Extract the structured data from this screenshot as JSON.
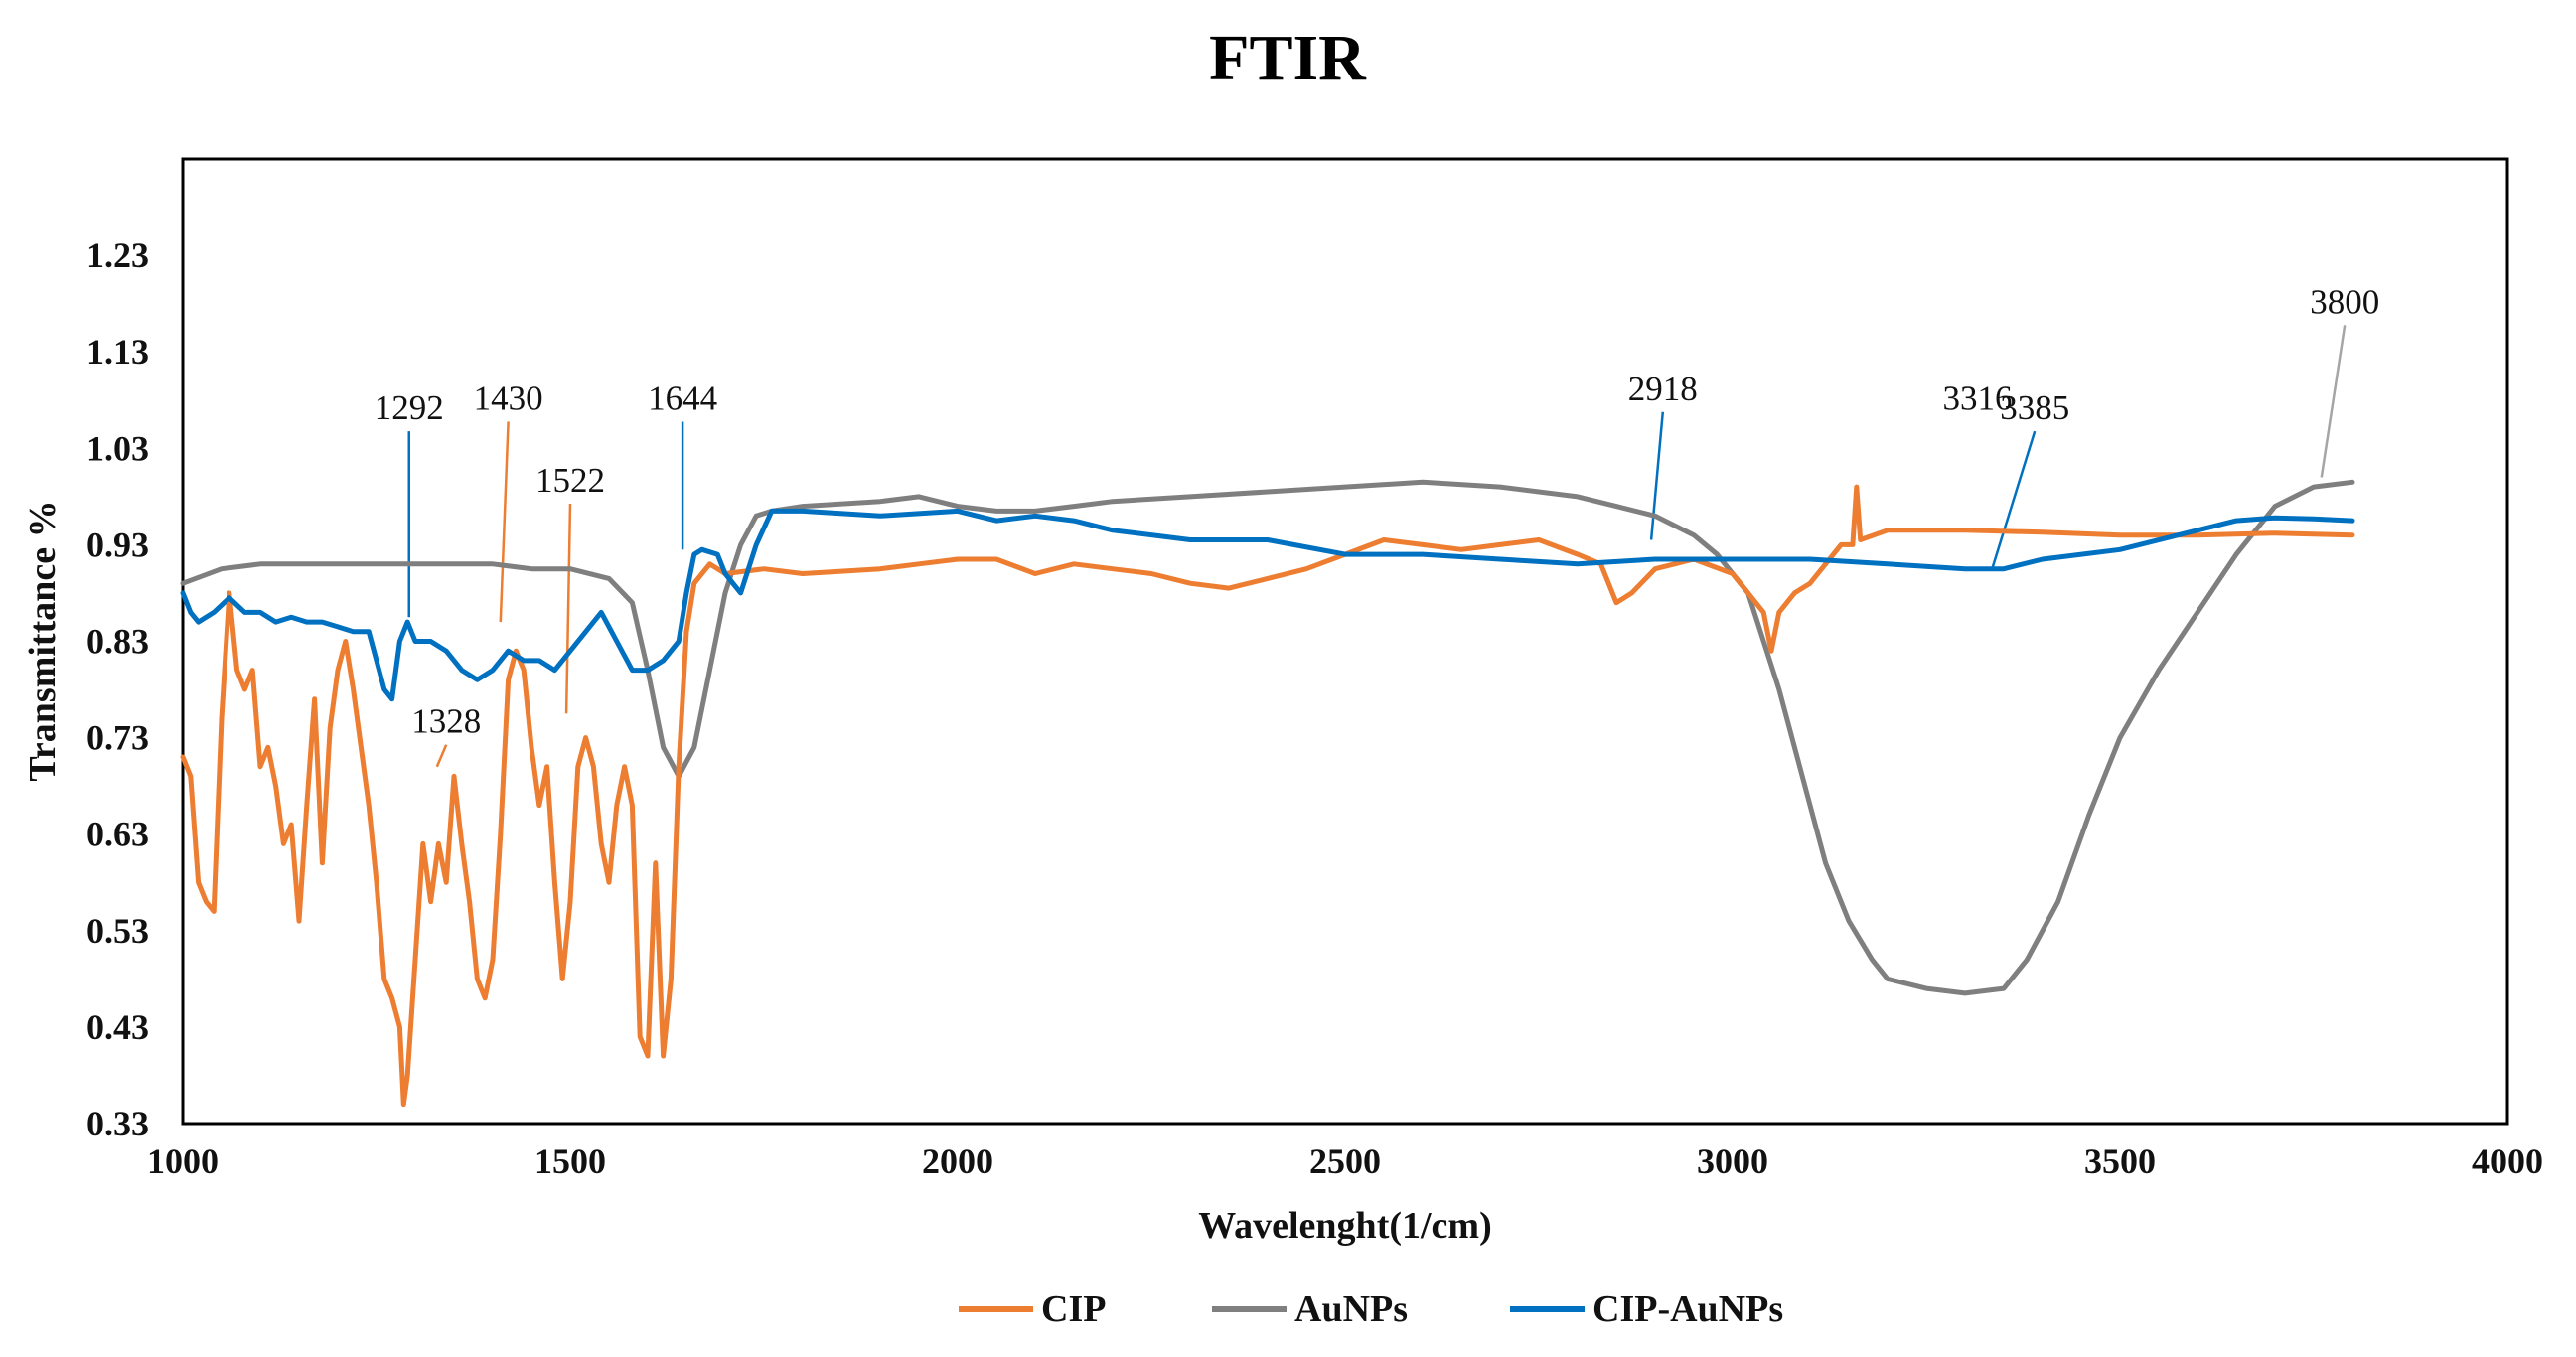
{
  "chart_data": {
    "type": "line",
    "title": "FTIR",
    "xlabel": "Wavelenght(1/cm)",
    "ylabel": "Transmittance %",
    "xlim": [
      1000,
      4000
    ],
    "ylim": [
      0.33,
      1.33
    ],
    "x_ticks": [
      "1000",
      "1500",
      "2000",
      "2500",
      "3000",
      "3500",
      "4000"
    ],
    "y_ticks": [
      "0.33",
      "0.43",
      "0.53",
      "0.63",
      "0.73",
      "0.83",
      "0.93",
      "1.03",
      "1.13",
      "1.23"
    ],
    "grid": false,
    "legend_position": "bottom",
    "series": [
      {
        "name": "CIP",
        "color": "#ED7D31",
        "points": [
          [
            1000,
            0.71
          ],
          [
            1010,
            0.69
          ],
          [
            1020,
            0.58
          ],
          [
            1030,
            0.56
          ],
          [
            1040,
            0.55
          ],
          [
            1050,
            0.75
          ],
          [
            1060,
            0.88
          ],
          [
            1070,
            0.8
          ],
          [
            1080,
            0.78
          ],
          [
            1090,
            0.8
          ],
          [
            1100,
            0.7
          ],
          [
            1110,
            0.72
          ],
          [
            1120,
            0.68
          ],
          [
            1130,
            0.62
          ],
          [
            1140,
            0.64
          ],
          [
            1150,
            0.54
          ],
          [
            1160,
            0.66
          ],
          [
            1170,
            0.77
          ],
          [
            1180,
            0.6
          ],
          [
            1190,
            0.74
          ],
          [
            1200,
            0.8
          ],
          [
            1210,
            0.83
          ],
          [
            1220,
            0.78
          ],
          [
            1230,
            0.72
          ],
          [
            1240,
            0.66
          ],
          [
            1250,
            0.58
          ],
          [
            1260,
            0.48
          ],
          [
            1270,
            0.46
          ],
          [
            1280,
            0.43
          ],
          [
            1285,
            0.35
          ],
          [
            1290,
            0.38
          ],
          [
            1300,
            0.5
          ],
          [
            1310,
            0.62
          ],
          [
            1320,
            0.56
          ],
          [
            1330,
            0.62
          ],
          [
            1340,
            0.58
          ],
          [
            1350,
            0.69
          ],
          [
            1360,
            0.62
          ],
          [
            1370,
            0.56
          ],
          [
            1380,
            0.48
          ],
          [
            1390,
            0.46
          ],
          [
            1400,
            0.5
          ],
          [
            1410,
            0.63
          ],
          [
            1420,
            0.79
          ],
          [
            1430,
            0.82
          ],
          [
            1440,
            0.8
          ],
          [
            1450,
            0.72
          ],
          [
            1460,
            0.66
          ],
          [
            1470,
            0.7
          ],
          [
            1480,
            0.58
          ],
          [
            1490,
            0.48
          ],
          [
            1500,
            0.56
          ],
          [
            1510,
            0.7
          ],
          [
            1520,
            0.73
          ],
          [
            1530,
            0.7
          ],
          [
            1540,
            0.62
          ],
          [
            1550,
            0.58
          ],
          [
            1560,
            0.66
          ],
          [
            1570,
            0.7
          ],
          [
            1580,
            0.66
          ],
          [
            1590,
            0.42
          ],
          [
            1600,
            0.4
          ],
          [
            1610,
            0.6
          ],
          [
            1620,
            0.4
          ],
          [
            1630,
            0.48
          ],
          [
            1640,
            0.7
          ],
          [
            1650,
            0.84
          ],
          [
            1660,
            0.89
          ],
          [
            1680,
            0.91
          ],
          [
            1700,
            0.9
          ],
          [
            1750,
            0.905
          ],
          [
            1800,
            0.9
          ],
          [
            1900,
            0.905
          ],
          [
            1950,
            0.91
          ],
          [
            2000,
            0.915
          ],
          [
            2050,
            0.915
          ],
          [
            2100,
            0.9
          ],
          [
            2150,
            0.91
          ],
          [
            2200,
            0.905
          ],
          [
            2250,
            0.9
          ],
          [
            2300,
            0.89
          ],
          [
            2350,
            0.885
          ],
          [
            2400,
            0.895
          ],
          [
            2450,
            0.905
          ],
          [
            2500,
            0.92
          ],
          [
            2550,
            0.935
          ],
          [
            2600,
            0.93
          ],
          [
            2650,
            0.925
          ],
          [
            2700,
            0.93
          ],
          [
            2750,
            0.935
          ],
          [
            2800,
            0.92
          ],
          [
            2830,
            0.91
          ],
          [
            2850,
            0.87
          ],
          [
            2870,
            0.88
          ],
          [
            2900,
            0.905
          ],
          [
            2950,
            0.915
          ],
          [
            3000,
            0.9
          ],
          [
            3020,
            0.88
          ],
          [
            3040,
            0.86
          ],
          [
            3050,
            0.82
          ],
          [
            3060,
            0.86
          ],
          [
            3080,
            0.88
          ],
          [
            3100,
            0.89
          ],
          [
            3120,
            0.91
          ],
          [
            3140,
            0.93
          ],
          [
            3155,
            0.93
          ],
          [
            3160,
            0.99
          ],
          [
            3165,
            0.935
          ],
          [
            3200,
            0.945
          ],
          [
            3250,
            0.945
          ],
          [
            3300,
            0.945
          ],
          [
            3400,
            0.943
          ],
          [
            3500,
            0.94
          ],
          [
            3600,
            0.94
          ],
          [
            3700,
            0.942
          ],
          [
            3800,
            0.94
          ]
        ]
      },
      {
        "name": "AuNPs",
        "color": "#7F7F7F",
        "points": [
          [
            1000,
            0.89
          ],
          [
            1050,
            0.905
          ],
          [
            1100,
            0.91
          ],
          [
            1200,
            0.91
          ],
          [
            1300,
            0.91
          ],
          [
            1400,
            0.91
          ],
          [
            1450,
            0.905
          ],
          [
            1500,
            0.905
          ],
          [
            1550,
            0.895
          ],
          [
            1580,
            0.87
          ],
          [
            1600,
            0.8
          ],
          [
            1620,
            0.72
          ],
          [
            1640,
            0.69
          ],
          [
            1660,
            0.72
          ],
          [
            1680,
            0.8
          ],
          [
            1700,
            0.88
          ],
          [
            1720,
            0.93
          ],
          [
            1740,
            0.96
          ],
          [
            1760,
            0.965
          ],
          [
            1800,
            0.97
          ],
          [
            1900,
            0.975
          ],
          [
            1950,
            0.98
          ],
          [
            2000,
            0.97
          ],
          [
            2050,
            0.965
          ],
          [
            2100,
            0.965
          ],
          [
            2150,
            0.97
          ],
          [
            2200,
            0.975
          ],
          [
            2300,
            0.98
          ],
          [
            2400,
            0.985
          ],
          [
            2500,
            0.99
          ],
          [
            2600,
            0.995
          ],
          [
            2700,
            0.99
          ],
          [
            2800,
            0.98
          ],
          [
            2850,
            0.97
          ],
          [
            2900,
            0.96
          ],
          [
            2950,
            0.94
          ],
          [
            2980,
            0.92
          ],
          [
            3000,
            0.9
          ],
          [
            3020,
            0.88
          ],
          [
            3040,
            0.83
          ],
          [
            3060,
            0.78
          ],
          [
            3080,
            0.72
          ],
          [
            3100,
            0.66
          ],
          [
            3120,
            0.6
          ],
          [
            3150,
            0.54
          ],
          [
            3180,
            0.5
          ],
          [
            3200,
            0.48
          ],
          [
            3250,
            0.47
          ],
          [
            3300,
            0.465
          ],
          [
            3350,
            0.47
          ],
          [
            3380,
            0.5
          ],
          [
            3420,
            0.56
          ],
          [
            3460,
            0.65
          ],
          [
            3500,
            0.73
          ],
          [
            3550,
            0.8
          ],
          [
            3600,
            0.86
          ],
          [
            3650,
            0.92
          ],
          [
            3700,
            0.97
          ],
          [
            3750,
            0.99
          ],
          [
            3800,
            0.995
          ]
        ]
      },
      {
        "name": "CIP-AuNPs",
        "color": "#0070C0",
        "points": [
          [
            1000,
            0.88
          ],
          [
            1010,
            0.86
          ],
          [
            1020,
            0.85
          ],
          [
            1040,
            0.86
          ],
          [
            1060,
            0.875
          ],
          [
            1080,
            0.86
          ],
          [
            1100,
            0.86
          ],
          [
            1120,
            0.85
          ],
          [
            1140,
            0.855
          ],
          [
            1160,
            0.85
          ],
          [
            1180,
            0.85
          ],
          [
            1200,
            0.845
          ],
          [
            1220,
            0.84
          ],
          [
            1240,
            0.84
          ],
          [
            1260,
            0.78
          ],
          [
            1270,
            0.77
          ],
          [
            1280,
            0.83
          ],
          [
            1290,
            0.85
          ],
          [
            1300,
            0.83
          ],
          [
            1320,
            0.83
          ],
          [
            1340,
            0.82
          ],
          [
            1360,
            0.8
          ],
          [
            1380,
            0.79
          ],
          [
            1400,
            0.8
          ],
          [
            1420,
            0.82
          ],
          [
            1440,
            0.81
          ],
          [
            1460,
            0.81
          ],
          [
            1480,
            0.8
          ],
          [
            1500,
            0.82
          ],
          [
            1520,
            0.84
          ],
          [
            1540,
            0.86
          ],
          [
            1560,
            0.83
          ],
          [
            1580,
            0.8
          ],
          [
            1600,
            0.8
          ],
          [
            1620,
            0.81
          ],
          [
            1640,
            0.83
          ],
          [
            1650,
            0.88
          ],
          [
            1660,
            0.92
          ],
          [
            1670,
            0.925
          ],
          [
            1690,
            0.92
          ],
          [
            1700,
            0.9
          ],
          [
            1720,
            0.88
          ],
          [
            1740,
            0.93
          ],
          [
            1760,
            0.965
          ],
          [
            1800,
            0.965
          ],
          [
            1900,
            0.96
          ],
          [
            2000,
            0.965
          ],
          [
            2050,
            0.955
          ],
          [
            2100,
            0.96
          ],
          [
            2150,
            0.955
          ],
          [
            2200,
            0.945
          ],
          [
            2300,
            0.935
          ],
          [
            2400,
            0.935
          ],
          [
            2500,
            0.92
          ],
          [
            2600,
            0.92
          ],
          [
            2700,
            0.915
          ],
          [
            2800,
            0.91
          ],
          [
            2900,
            0.915
          ],
          [
            3000,
            0.915
          ],
          [
            3100,
            0.915
          ],
          [
            3200,
            0.91
          ],
          [
            3300,
            0.905
          ],
          [
            3350,
            0.905
          ],
          [
            3400,
            0.915
          ],
          [
            3500,
            0.925
          ],
          [
            3600,
            0.945
          ],
          [
            3650,
            0.955
          ],
          [
            3700,
            0.958
          ],
          [
            3750,
            0.957
          ],
          [
            3800,
            0.955
          ]
        ]
      }
    ],
    "annotations": [
      {
        "label": "1292",
        "x": 1292,
        "y": 0.855,
        "color": "#0070C0"
      },
      {
        "label": "1430",
        "x": 1410,
        "y": 0.85,
        "color": "#ED7D31"
      },
      {
        "label": "1522",
        "x": 1495,
        "y": 0.755,
        "color": "#ED7D31"
      },
      {
        "label": "1644",
        "x": 1645,
        "y": 0.925,
        "color": "#0070C0"
      },
      {
        "label": "1328",
        "x": 1328,
        "y": 0.7,
        "color": "#ED7D31"
      },
      {
        "label": "2918",
        "x": 2895,
        "y": 0.935,
        "color": "#0070C0"
      },
      {
        "label": "3316",
        "x": 3316,
        "y": 0.0,
        "color": "none"
      },
      {
        "label": "3385",
        "x": 3335,
        "y": 0.905,
        "color": "#0070C0"
      },
      {
        "label": "3800",
        "x": 3760,
        "y": 1.0,
        "color": "#A5A5A5"
      }
    ]
  }
}
